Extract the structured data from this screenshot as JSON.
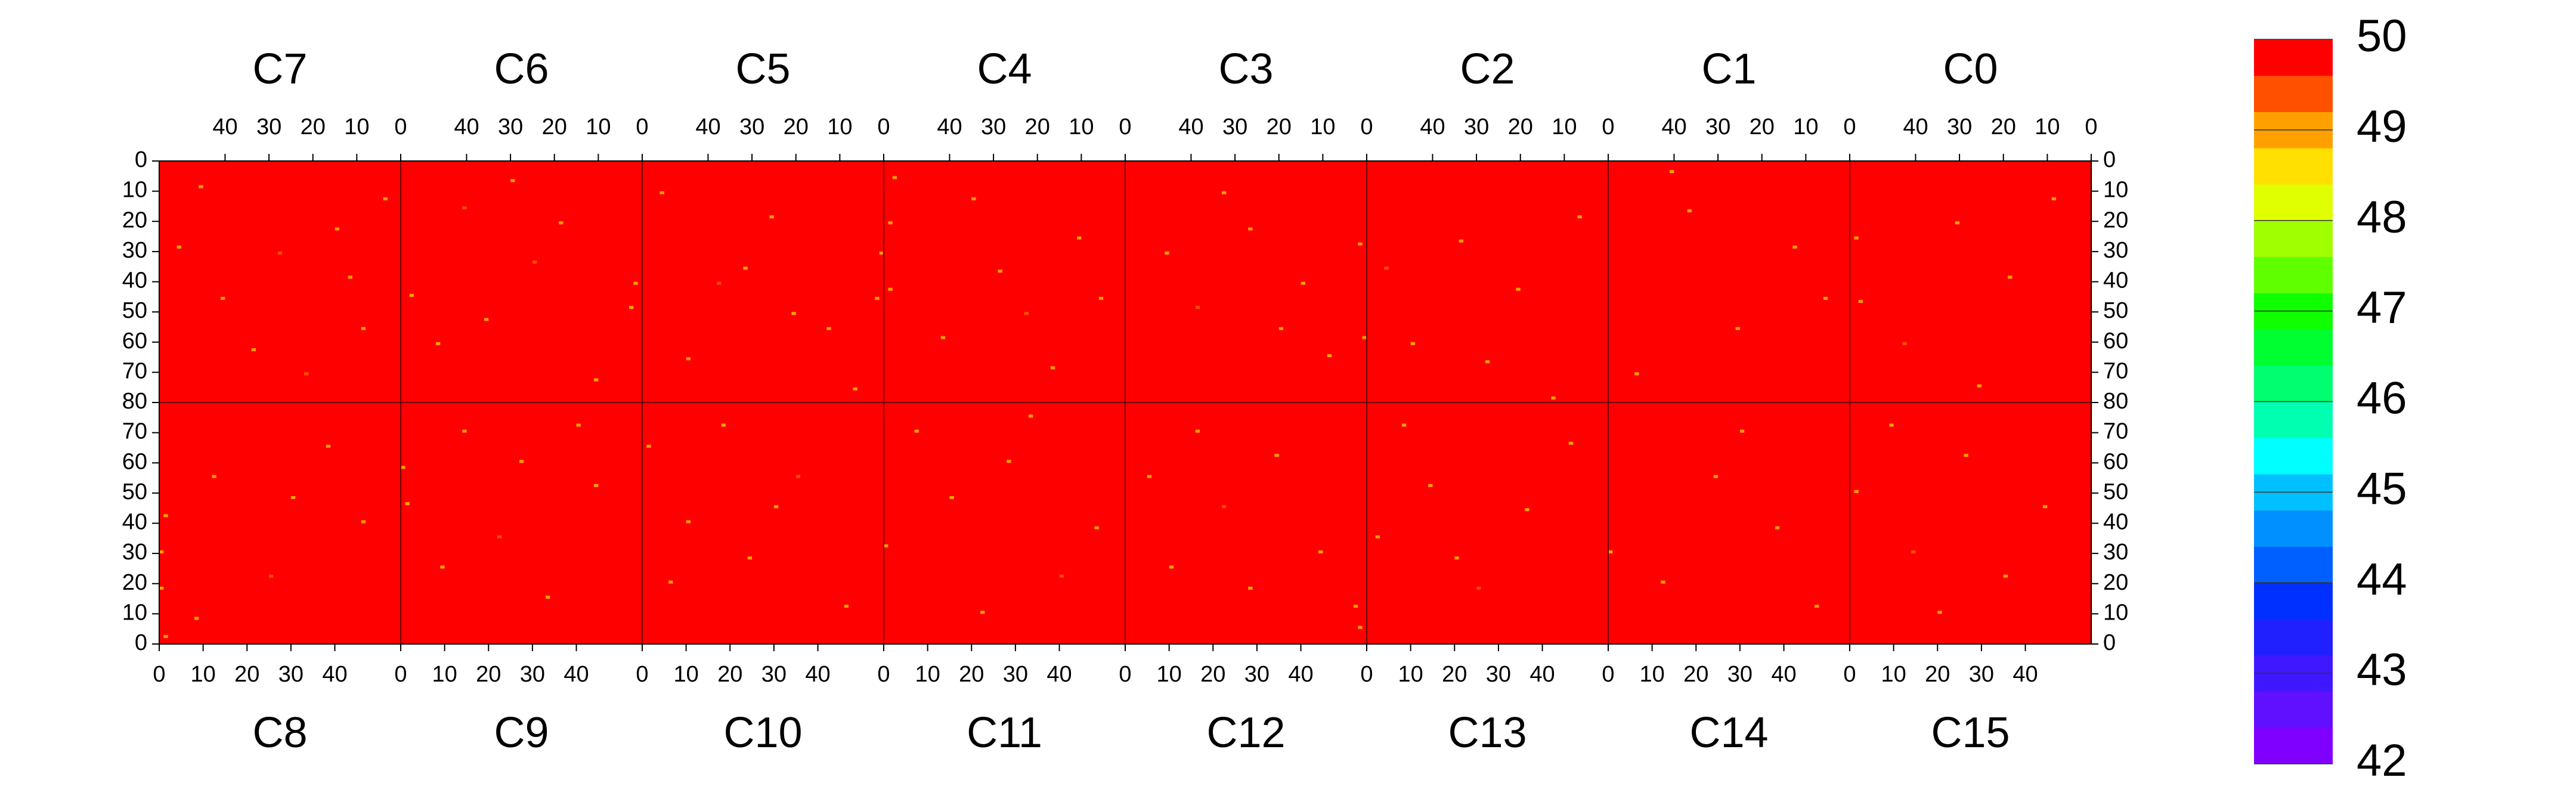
{
  "chart_data": {
    "type": "heatmap",
    "fill_value": 50,
    "xlim": [
      0,
      55
    ],
    "xticks": [
      0,
      10,
      20,
      30,
      40
    ],
    "ylim": [
      0,
      80
    ],
    "yticks": [
      0,
      10,
      20,
      30,
      40,
      50,
      60,
      70,
      80
    ],
    "panels": [
      {
        "name": "C7",
        "cells": [
          [
            3,
            12,
            49
          ],
          [
            14,
            22,
            49
          ],
          [
            27,
            30,
            49.5
          ],
          [
            40,
            45,
            49
          ],
          [
            8,
            55,
            49
          ],
          [
            33,
            62,
            49
          ],
          [
            50,
            28,
            49
          ],
          [
            21,
            70,
            49.5
          ],
          [
            45,
            8,
            49
          ],
          [
            11,
            38,
            49
          ]
        ]
      },
      {
        "name": "C6",
        "cells": [
          [
            1,
            40,
            49
          ],
          [
            2,
            48,
            49
          ],
          [
            18,
            20,
            49
          ],
          [
            24,
            33,
            49.5
          ],
          [
            35,
            52,
            49
          ],
          [
            46,
            60,
            49
          ],
          [
            10,
            72,
            49
          ],
          [
            29,
            6,
            49
          ],
          [
            52,
            44,
            49
          ],
          [
            40,
            15,
            49.5
          ]
        ]
      },
      {
        "name": "C5",
        "cells": [
          [
            0,
            30,
            49
          ],
          [
            1,
            45,
            49
          ],
          [
            12,
            55,
            49
          ],
          [
            25,
            18,
            49
          ],
          [
            37,
            40,
            49.5
          ],
          [
            44,
            65,
            49
          ],
          [
            6,
            75,
            49
          ],
          [
            20,
            50,
            49
          ],
          [
            50,
            10,
            49
          ],
          [
            31,
            35,
            49
          ]
        ]
      },
      {
        "name": "C4",
        "cells": [
          [
            52,
            5,
            49
          ],
          [
            53,
            20,
            49
          ],
          [
            53,
            42,
            49
          ],
          [
            10,
            25,
            49
          ],
          [
            22,
            50,
            49.5
          ],
          [
            34,
            12,
            49
          ],
          [
            41,
            58,
            49
          ],
          [
            16,
            68,
            49
          ],
          [
            28,
            36,
            49
          ],
          [
            5,
            45,
            49
          ]
        ]
      },
      {
        "name": "C3",
        "cells": [
          [
            0,
            58,
            49
          ],
          [
            1,
            27,
            49
          ],
          [
            14,
            40,
            49
          ],
          [
            26,
            22,
            49
          ],
          [
            38,
            48,
            49.5
          ],
          [
            45,
            30,
            49
          ],
          [
            8,
            64,
            49
          ],
          [
            32,
            10,
            49
          ],
          [
            19,
            55,
            49
          ]
        ]
      },
      {
        "name": "C2",
        "cells": [
          [
            6,
            18,
            49
          ],
          [
            20,
            42,
            49
          ],
          [
            33,
            26,
            49
          ],
          [
            44,
            60,
            49
          ],
          [
            12,
            78,
            49
          ],
          [
            27,
            66,
            49
          ],
          [
            50,
            35,
            49.5
          ]
        ]
      },
      {
        "name": "C1",
        "cells": [
          [
            40,
            3,
            49
          ],
          [
            12,
            28,
            49
          ],
          [
            25,
            55,
            49
          ],
          [
            36,
            16,
            49
          ],
          [
            48,
            70,
            49
          ],
          [
            5,
            45,
            49
          ]
        ]
      },
      {
        "name": "C0",
        "cells": [
          [
            53,
            25,
            49
          ],
          [
            52,
            46,
            49
          ],
          [
            30,
            20,
            49
          ],
          [
            18,
            38,
            49
          ],
          [
            42,
            60,
            49.5
          ],
          [
            8,
            12,
            49
          ],
          [
            25,
            74,
            49
          ]
        ]
      },
      {
        "name": "C8",
        "cells": [
          [
            0,
            30,
            49
          ],
          [
            1,
            42,
            49
          ],
          [
            0,
            18,
            49
          ],
          [
            12,
            55,
            49
          ],
          [
            25,
            22,
            49.5
          ],
          [
            38,
            65,
            49
          ],
          [
            46,
            40,
            49
          ],
          [
            8,
            8,
            49
          ],
          [
            30,
            48,
            49
          ],
          [
            1,
            2,
            49
          ]
        ]
      },
      {
        "name": "C9",
        "cells": [
          [
            0,
            58,
            49
          ],
          [
            1,
            46,
            49
          ],
          [
            14,
            70,
            49
          ],
          [
            22,
            35,
            49.5
          ],
          [
            33,
            15,
            49
          ],
          [
            44,
            52,
            49
          ],
          [
            9,
            25,
            49
          ],
          [
            40,
            72,
            49
          ],
          [
            27,
            60,
            49
          ]
        ]
      },
      {
        "name": "C10",
        "cells": [
          [
            1,
            65,
            49
          ],
          [
            10,
            40,
            49
          ],
          [
            24,
            28,
            49
          ],
          [
            35,
            55,
            49.5
          ],
          [
            46,
            12,
            49
          ],
          [
            18,
            72,
            49
          ],
          [
            30,
            45,
            49
          ],
          [
            6,
            20,
            49
          ]
        ]
      },
      {
        "name": "C11",
        "cells": [
          [
            0,
            32,
            49
          ],
          [
            15,
            48,
            49
          ],
          [
            28,
            60,
            49
          ],
          [
            40,
            22,
            49.5
          ],
          [
            7,
            70,
            49
          ],
          [
            22,
            10,
            49
          ],
          [
            48,
            38,
            49
          ],
          [
            33,
            75,
            49
          ]
        ]
      },
      {
        "name": "C12",
        "cells": [
          [
            52,
            12,
            49
          ],
          [
            53,
            5,
            49
          ],
          [
            10,
            25,
            49
          ],
          [
            22,
            45,
            49.5
          ],
          [
            34,
            62,
            49
          ],
          [
            44,
            30,
            49
          ],
          [
            16,
            70,
            49
          ],
          [
            28,
            18,
            49
          ],
          [
            5,
            55,
            49
          ]
        ]
      },
      {
        "name": "C13",
        "cells": [
          [
            2,
            35,
            49
          ],
          [
            14,
            52,
            49
          ],
          [
            25,
            18,
            49.5
          ],
          [
            36,
            44,
            49
          ],
          [
            46,
            66,
            49
          ],
          [
            8,
            72,
            49
          ],
          [
            20,
            28,
            49
          ]
        ]
      },
      {
        "name": "C14",
        "cells": [
          [
            0,
            30,
            49
          ],
          [
            12,
            20,
            49
          ],
          [
            24,
            55,
            49
          ],
          [
            38,
            38,
            49
          ],
          [
            47,
            12,
            49
          ],
          [
            30,
            70,
            49
          ]
        ]
      },
      {
        "name": "C15",
        "cells": [
          [
            1,
            50,
            49
          ],
          [
            14,
            30,
            49.5
          ],
          [
            26,
            62,
            49
          ],
          [
            35,
            22,
            49
          ],
          [
            44,
            45,
            49
          ],
          [
            20,
            10,
            49
          ],
          [
            9,
            72,
            49
          ]
        ]
      }
    ],
    "colorbar": {
      "lim": [
        42,
        50
      ],
      "ticks": [
        42,
        43,
        44,
        45,
        46,
        47,
        48,
        49,
        50
      ],
      "colors": [
        "#8000ff",
        "#6010ff",
        "#4018ff",
        "#2020ff",
        "#0030ff",
        "#0060ff",
        "#0090ff",
        "#00c0ff",
        "#00ffff",
        "#00ffb0",
        "#00ff70",
        "#00ff30",
        "#10ff00",
        "#60ff00",
        "#a0ff00",
        "#e0ff00",
        "#ffe000",
        "#ffa000",
        "#ff5000",
        "#ff0000"
      ]
    }
  }
}
